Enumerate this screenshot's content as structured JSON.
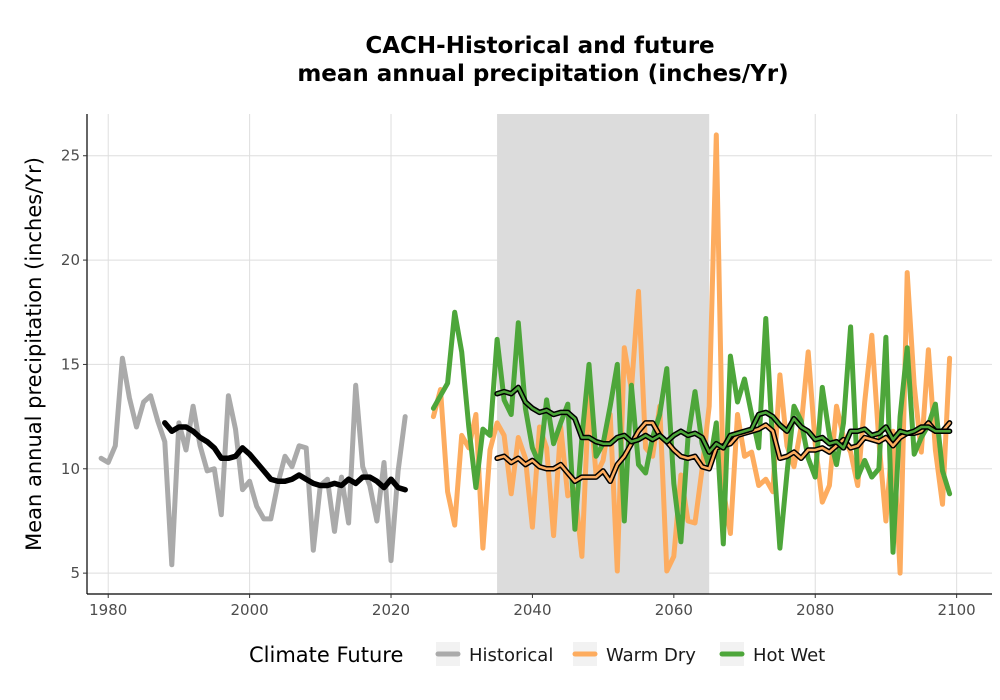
{
  "chart_data": {
    "type": "line",
    "title": "CACH-Historical and future",
    "subtitle": "mean annual precipitation (inches/Yr)",
    "xlabel": "",
    "ylabel": "Mean annual precipitation (inches/Yr)",
    "xlim": [
      1977,
      2105
    ],
    "ylim": [
      4,
      27
    ],
    "x_ticks": [
      1980,
      2000,
      2020,
      2040,
      2060,
      2080,
      2100
    ],
    "y_ticks": [
      5,
      10,
      15,
      20,
      25
    ],
    "grid": true,
    "shaded_period": [
      2035,
      2065
    ],
    "legend": {
      "title": "Climate Future",
      "position": "bottom",
      "entries": [
        "Historical",
        "Warm Dry",
        "Hot Wet"
      ]
    },
    "series": [
      {
        "name": "Historical",
        "color": "#aaaaaa",
        "x": [
          1979,
          1980,
          1981,
          1982,
          1983,
          1984,
          1985,
          1986,
          1987,
          1988,
          1989,
          1990,
          1991,
          1992,
          1993,
          1994,
          1995,
          1996,
          1997,
          1998,
          1999,
          2000,
          2001,
          2002,
          2003,
          2004,
          2005,
          2006,
          2007,
          2008,
          2009,
          2010,
          2011,
          2012,
          2013,
          2014,
          2015,
          2016,
          2017,
          2018,
          2019,
          2020,
          2021,
          2022
        ],
        "values": [
          10.5,
          10.3,
          11.1,
          15.3,
          13.4,
          12.0,
          13.2,
          13.5,
          12.3,
          11.3,
          5.4,
          12.2,
          10.9,
          13.0,
          11.1,
          9.9,
          10.0,
          7.8,
          13.5,
          11.9,
          9.0,
          9.4,
          8.2,
          7.6,
          7.6,
          9.3,
          10.6,
          10.1,
          11.1,
          11.0,
          6.1,
          9.2,
          9.5,
          7.0,
          9.6,
          7.4,
          14.0,
          10.1,
          9.2,
          7.5,
          10.3,
          5.6,
          9.9,
          12.5
        ]
      },
      {
        "name": "Historical rolling mean",
        "color": "#000000",
        "x": [
          1988,
          1989,
          1990,
          1991,
          1992,
          1993,
          1994,
          1995,
          1996,
          1997,
          1998,
          1999,
          2000,
          2001,
          2002,
          2003,
          2004,
          2005,
          2006,
          2007,
          2008,
          2009,
          2010,
          2011,
          2012,
          2013,
          2014,
          2015,
          2016,
          2017,
          2018,
          2019,
          2020,
          2021,
          2022
        ],
        "values": [
          12.2,
          11.8,
          12.0,
          12.0,
          11.8,
          11.5,
          11.3,
          11.0,
          10.5,
          10.5,
          10.6,
          11.0,
          10.7,
          10.3,
          9.9,
          9.5,
          9.4,
          9.4,
          9.5,
          9.7,
          9.5,
          9.3,
          9.2,
          9.2,
          9.3,
          9.2,
          9.5,
          9.3,
          9.6,
          9.6,
          9.4,
          9.1,
          9.5,
          9.1,
          9.0
        ]
      },
      {
        "name": "Warm Dry",
        "color": "#fdac5f",
        "x": [
          2026,
          2027,
          2028,
          2029,
          2030,
          2031,
          2032,
          2033,
          2034,
          2035,
          2036,
          2037,
          2038,
          2039,
          2040,
          2041,
          2042,
          2043,
          2044,
          2045,
          2046,
          2047,
          2048,
          2049,
          2050,
          2051,
          2052,
          2053,
          2054,
          2055,
          2056,
          2057,
          2058,
          2059,
          2060,
          2061,
          2062,
          2063,
          2064,
          2065,
          2066,
          2067,
          2068,
          2069,
          2070,
          2071,
          2072,
          2073,
          2074,
          2075,
          2076,
          2077,
          2078,
          2079,
          2080,
          2081,
          2082,
          2083,
          2084,
          2085,
          2086,
          2087,
          2088,
          2089,
          2090,
          2091,
          2092,
          2093,
          2094,
          2095,
          2096,
          2097,
          2098,
          2099
        ],
        "values": [
          12.5,
          13.8,
          8.9,
          7.3,
          11.6,
          11.0,
          12.6,
          6.2,
          10.9,
          12.2,
          11.6,
          8.8,
          11.5,
          10.5,
          7.2,
          12.0,
          11.0,
          6.8,
          12.0,
          8.7,
          9.0,
          5.8,
          13.7,
          9.7,
          10.4,
          12.6,
          5.1,
          15.8,
          13.8,
          18.5,
          11.0,
          10.6,
          13.0,
          5.1,
          5.8,
          9.7,
          7.5,
          7.4,
          10.0,
          13.0,
          26.0,
          9.0,
          6.9,
          12.6,
          10.6,
          10.8,
          9.2,
          9.5,
          8.9,
          14.5,
          11.1,
          10.1,
          12.0,
          15.6,
          11.2,
          8.4,
          9.2,
          13.0,
          11.5,
          10.8,
          9.2,
          13.2,
          16.4,
          11.3,
          7.5,
          11.8,
          5.0,
          19.4,
          14.0,
          10.8,
          15.7,
          10.9,
          8.3,
          15.3
        ]
      },
      {
        "name": "Hot Wet",
        "color": "#4da63a",
        "x": [
          2026,
          2027,
          2028,
          2029,
          2030,
          2031,
          2032,
          2033,
          2034,
          2035,
          2036,
          2037,
          2038,
          2039,
          2040,
          2041,
          2042,
          2043,
          2044,
          2045,
          2046,
          2047,
          2048,
          2049,
          2050,
          2051,
          2052,
          2053,
          2054,
          2055,
          2056,
          2057,
          2058,
          2059,
          2060,
          2061,
          2062,
          2063,
          2064,
          2065,
          2066,
          2067,
          2068,
          2069,
          2070,
          2071,
          2072,
          2073,
          2074,
          2075,
          2076,
          2077,
          2078,
          2079,
          2080,
          2081,
          2082,
          2083,
          2084,
          2085,
          2086,
          2087,
          2088,
          2089,
          2090,
          2091,
          2092,
          2093,
          2094,
          2095,
          2096,
          2097,
          2098,
          2099
        ],
        "values": [
          12.9,
          13.5,
          14.1,
          17.5,
          15.6,
          12.0,
          9.1,
          11.9,
          11.6,
          16.2,
          13.3,
          12.6,
          17.0,
          12.9,
          11.0,
          10.2,
          13.3,
          11.2,
          12.2,
          13.1,
          7.1,
          11.5,
          15.0,
          10.6,
          11.2,
          13.0,
          15.0,
          7.5,
          14.0,
          10.2,
          9.8,
          11.5,
          12.6,
          14.8,
          9.3,
          6.5,
          11.5,
          13.7,
          11.2,
          10.1,
          12.2,
          6.4,
          15.4,
          13.2,
          14.3,
          12.6,
          11.0,
          17.2,
          11.1,
          6.2,
          9.8,
          13.0,
          12.3,
          10.5,
          9.6,
          13.9,
          11.6,
          10.2,
          12.2,
          16.8,
          9.6,
          10.4,
          9.6,
          10.0,
          16.3,
          6.0,
          12.5,
          15.8,
          10.7,
          11.5,
          12.1,
          13.1,
          9.9,
          8.8
        ]
      },
      {
        "name": "Warm Dry rolling mean",
        "color": "#fdac5f",
        "x": [
          2035,
          2036,
          2037,
          2038,
          2039,
          2040,
          2041,
          2042,
          2043,
          2044,
          2045,
          2046,
          2047,
          2048,
          2049,
          2050,
          2051,
          2052,
          2053,
          2054,
          2055,
          2056,
          2057,
          2058,
          2059,
          2060,
          2061,
          2062,
          2063,
          2064,
          2065,
          2066,
          2067,
          2068,
          2069,
          2070,
          2071,
          2072,
          2073,
          2074,
          2075,
          2076,
          2077,
          2078,
          2079,
          2080,
          2081,
          2082,
          2083,
          2084,
          2085,
          2086,
          2087,
          2088,
          2089,
          2090,
          2091,
          2092,
          2093,
          2094,
          2095,
          2096,
          2097,
          2098,
          2099
        ],
        "values": [
          10.5,
          10.6,
          10.3,
          10.5,
          10.2,
          10.4,
          10.1,
          10.0,
          10.0,
          10.2,
          9.8,
          9.4,
          9.6,
          9.6,
          9.6,
          9.9,
          9.4,
          10.2,
          10.6,
          11.2,
          11.8,
          12.2,
          12.2,
          11.6,
          11.3,
          10.9,
          10.6,
          10.5,
          10.6,
          10.1,
          10.0,
          11.0,
          11.1,
          11.2,
          11.6,
          11.7,
          11.8,
          11.9,
          12.1,
          11.8,
          10.5,
          10.6,
          10.8,
          10.5,
          10.9,
          10.9,
          11.0,
          10.8,
          11.1,
          11.4,
          11.0,
          11.1,
          11.5,
          11.4,
          11.3,
          11.5,
          11.1,
          11.5,
          11.7,
          11.7,
          11.8,
          12.2,
          11.8,
          11.8,
          12.2
        ]
      },
      {
        "name": "Hot Wet rolling mean",
        "color": "#4da63a",
        "x": [
          2035,
          2036,
          2037,
          2038,
          2039,
          2040,
          2041,
          2042,
          2043,
          2044,
          2045,
          2046,
          2047,
          2048,
          2049,
          2050,
          2051,
          2052,
          2053,
          2054,
          2055,
          2056,
          2057,
          2058,
          2059,
          2060,
          2061,
          2062,
          2063,
          2064,
          2065,
          2066,
          2067,
          2068,
          2069,
          2070,
          2071,
          2072,
          2073,
          2074,
          2075,
          2076,
          2077,
          2078,
          2079,
          2080,
          2081,
          2082,
          2083,
          2084,
          2085,
          2086,
          2087,
          2088,
          2089,
          2090,
          2091,
          2092,
          2093,
          2094,
          2095,
          2096,
          2097,
          2098,
          2099
        ],
        "values": [
          13.6,
          13.7,
          13.6,
          13.9,
          13.2,
          12.9,
          12.7,
          12.8,
          12.6,
          12.7,
          12.7,
          12.4,
          11.5,
          11.5,
          11.3,
          11.2,
          11.2,
          11.5,
          11.6,
          11.3,
          11.4,
          11.6,
          11.4,
          11.6,
          11.3,
          11.6,
          11.8,
          11.6,
          11.7,
          11.5,
          10.8,
          11.2,
          11.0,
          11.6,
          11.7,
          11.8,
          11.9,
          12.6,
          12.7,
          12.5,
          12.1,
          11.8,
          12.4,
          12.0,
          11.8,
          11.4,
          11.5,
          11.2,
          11.3,
          11.0,
          11.8,
          11.8,
          11.9,
          11.6,
          11.7,
          12.0,
          11.4,
          11.8,
          11.7,
          11.8,
          12.0,
          12.0,
          11.8,
          11.8,
          11.8
        ]
      }
    ]
  }
}
